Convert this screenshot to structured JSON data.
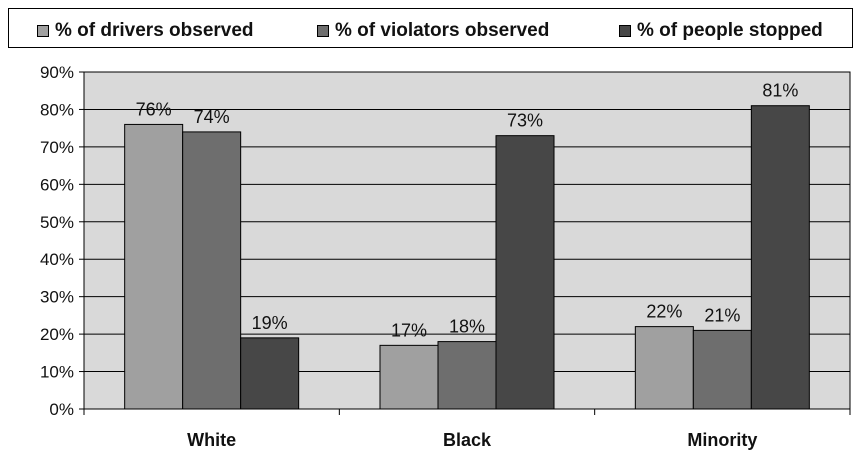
{
  "chart_data": {
    "type": "bar",
    "categories": [
      "White",
      "Black",
      "Minority"
    ],
    "series": [
      {
        "name": "% of drivers observed",
        "values": [
          76,
          17,
          22
        ],
        "labels": [
          "76%",
          "17%",
          "22%"
        ],
        "color": "#a0a0a0"
      },
      {
        "name": "% of violators observed",
        "values": [
          74,
          18,
          21
        ],
        "labels": [
          "74%",
          "18%",
          "21%"
        ],
        "color": "#6e6e6e"
      },
      {
        "name": "% of people stopped",
        "values": [
          19,
          73,
          81
        ],
        "labels": [
          "19%",
          "73%",
          "81%"
        ],
        "color": "#474747"
      }
    ],
    "ylim": [
      0,
      90
    ],
    "yticks": [
      0,
      10,
      20,
      30,
      40,
      50,
      60,
      70,
      80,
      90
    ],
    "ytick_labels": [
      "0%",
      "10%",
      "20%",
      "30%",
      "40%",
      "50%",
      "60%",
      "70%",
      "80%",
      "90%"
    ],
    "grid": true,
    "legend_position": "top",
    "plot_background": "#d9d9d9"
  }
}
